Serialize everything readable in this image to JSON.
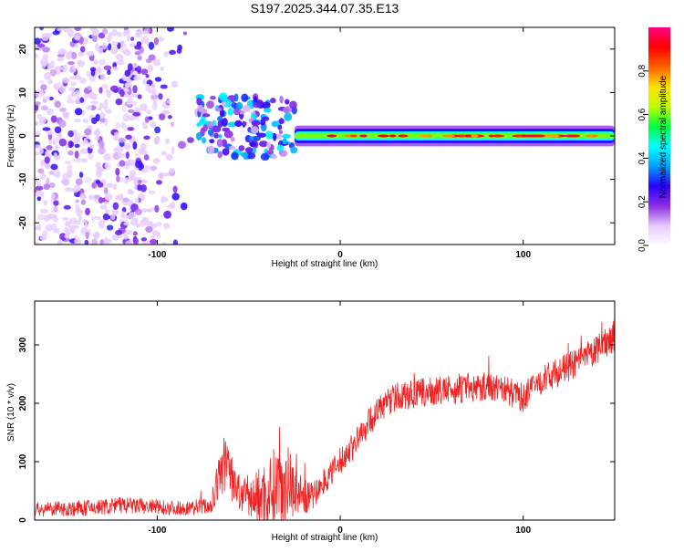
{
  "figure_title": "S197.2025.344.07.35.E13",
  "chart_data": [
    {
      "type": "heatmap",
      "title": "S197.2025.344.07.35.E13",
      "xlabel": "Height of straight line (km)",
      "ylabel": "Frequency (Hz)",
      "xlim": [
        -167,
        150
      ],
      "ylim": [
        -25,
        25
      ],
      "x_ticks": [
        -100,
        0,
        100
      ],
      "y_ticks": [
        -20,
        -10,
        0,
        10,
        20
      ],
      "colorbar": {
        "label": "Normalized spectral amplitude",
        "range": [
          0,
          1
        ],
        "ticks": [
          0.0,
          0.2,
          0.4,
          0.6,
          0.8
        ],
        "tick_labels": [
          "0.0",
          "0.2",
          "0.4",
          "0.6",
          "0.8"
        ],
        "colormap": [
          "#ffffff",
          "#e6c8ff",
          "#8a2be2",
          "#2a00ff",
          "#00a0ff",
          "#00ffff",
          "#00ff40",
          "#c0ff00",
          "#ffe000",
          "#ff6000",
          "#ff0000",
          "#ff0080"
        ]
      },
      "regions": [
        {
          "name": "noise",
          "x_range": [
            -167,
            -78
          ],
          "freq_range": [
            -25,
            25
          ],
          "amplitude": 0.1
        },
        {
          "name": "onset",
          "x_range": [
            -78,
            -25
          ],
          "freq_range": [
            -5,
            9
          ],
          "amplitude": 0.35
        },
        {
          "name": "signal",
          "x_range": [
            -25,
            150
          ],
          "freq_center": 0,
          "freq_halfwidth": 1.5,
          "amplitude_peak": 1.0
        }
      ]
    },
    {
      "type": "line",
      "xlabel": "Height of straight line (km)",
      "ylabel": "SNR (10 * v/v)",
      "xlim": [
        -167,
        150
      ],
      "ylim": [
        0,
        375
      ],
      "x_ticks": [
        -100,
        0,
        100
      ],
      "y_ticks": [
        0,
        100,
        200,
        300
      ],
      "color": "#ee2222",
      "series": [
        {
          "name": "SNR",
          "x": [
            -167,
            -140,
            -120,
            -100,
            -85,
            -70,
            -65,
            -62,
            -58,
            -55,
            -50,
            -45,
            -40,
            -35,
            -30,
            -25,
            -20,
            -15,
            -10,
            -5,
            0,
            5,
            10,
            15,
            20,
            25,
            30,
            40,
            50,
            60,
            70,
            80,
            90,
            95,
            100,
            105,
            110,
            120,
            130,
            140,
            150
          ],
          "y": [
            18,
            20,
            25,
            22,
            20,
            25,
            90,
            100,
            60,
            45,
            35,
            40,
            45,
            60,
            70,
            55,
            40,
            40,
            60,
            80,
            100,
            120,
            140,
            165,
            185,
            200,
            210,
            215,
            220,
            222,
            225,
            230,
            225,
            215,
            210,
            225,
            240,
            255,
            270,
            290,
            320
          ],
          "noise": [
            12,
            14,
            15,
            14,
            12,
            15,
            50,
            50,
            40,
            35,
            30,
            50,
            60,
            70,
            70,
            50,
            30,
            25,
            20,
            22,
            25,
            25,
            25,
            25,
            25,
            25,
            25,
            25,
            25,
            25,
            25,
            25,
            25,
            25,
            25,
            25,
            25,
            25,
            25,
            25,
            30
          ]
        }
      ]
    }
  ]
}
